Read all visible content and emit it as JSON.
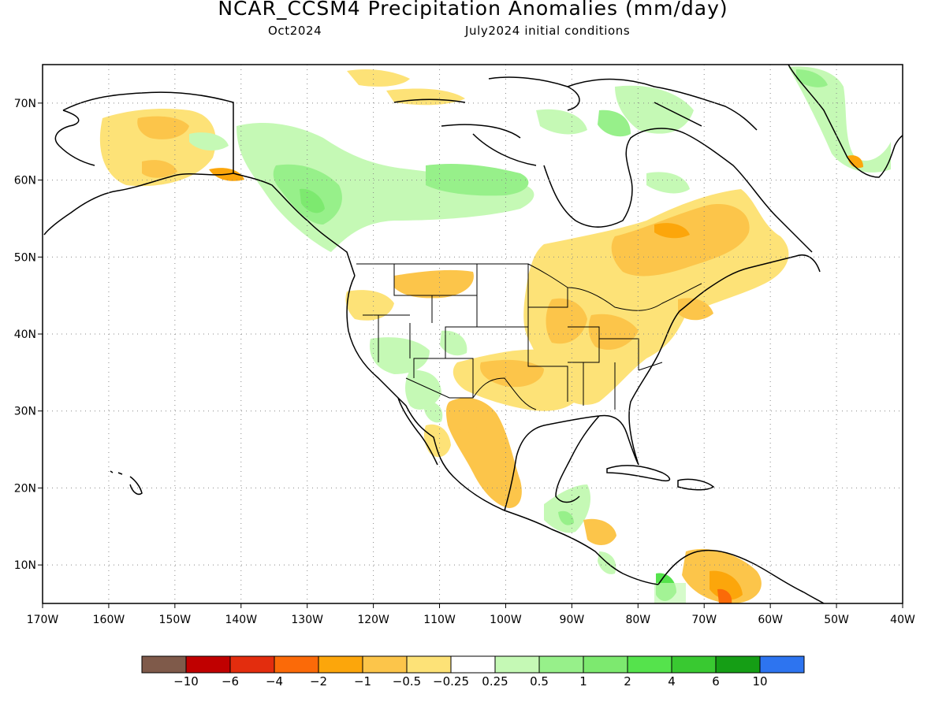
{
  "header": {
    "title": "NCAR_CCSM4 Precipitation Anomalies (mm/day)",
    "subtitle_left": "Oct2024",
    "subtitle_right": "July2024 initial conditions"
  },
  "map": {
    "lon_range": [
      -170,
      -40
    ],
    "lat_range": [
      5,
      75
    ],
    "lon_ticks": [
      "170W",
      "160W",
      "150W",
      "140W",
      "130W",
      "120W",
      "110W",
      "100W",
      "90W",
      "80W",
      "70W",
      "60W",
      "50W",
      "40W"
    ],
    "lat_ticks": [
      "10N",
      "20N",
      "30N",
      "40N",
      "50N",
      "60N",
      "70N"
    ],
    "grid": "dotted"
  },
  "colorbar": {
    "colors": [
      "#7f5a4a",
      "#c00000",
      "#e32d0e",
      "#fb6a08",
      "#fca60b",
      "#fcc54a",
      "#fde277",
      "#ffffff",
      "#c5f9b5",
      "#97f08a",
      "#7de96f",
      "#55e34c",
      "#39c931",
      "#159e15",
      "#2d74f0"
    ],
    "labels": [
      "−10",
      "−6",
      "−4",
      "−2",
      "−1",
      "−0.5",
      "−0.25",
      "0.25",
      "0.5",
      "1",
      "2",
      "4",
      "6",
      "10"
    ]
  }
}
